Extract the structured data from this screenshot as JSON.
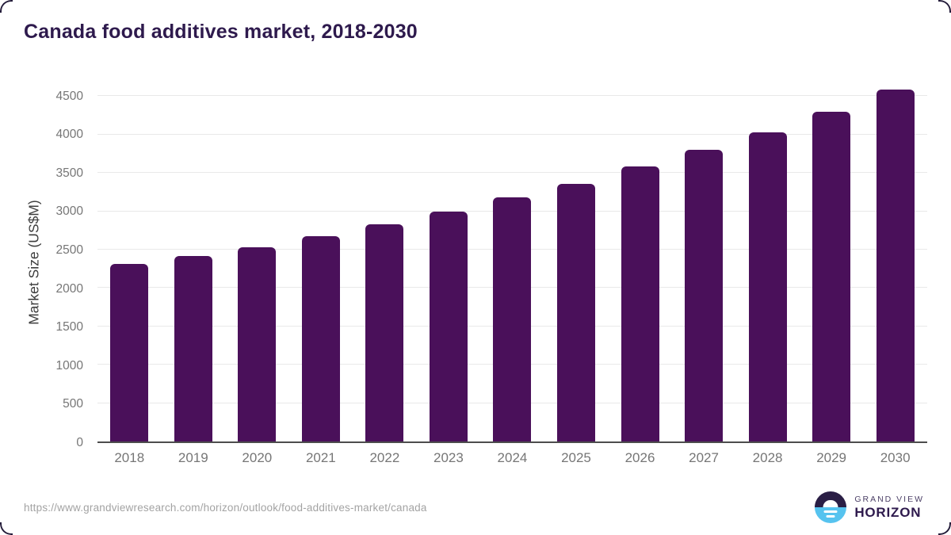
{
  "title": "Canada food additives market, 2018-2030",
  "footer": {
    "source_url": "https://www.grandviewresearch.com/horizon/outlook/food-additives-market/canada",
    "logo_line1": "GRAND VIEW",
    "logo_line2": "HORIZON"
  },
  "colors": {
    "bar": "#4a105a",
    "title": "#2e1a4d",
    "axis_line": "#4d4d4d",
    "gridline": "#e9e9e9",
    "tick_label": "#767676",
    "axis_title": "#3d3d3d",
    "url_text": "#a3a3a3",
    "logo_dark": "#2a1e45",
    "logo_blue": "#56c3ef"
  },
  "chart_data": {
    "type": "bar",
    "title": "Canada food additives market, 2018-2030",
    "categories": [
      "2018",
      "2019",
      "2020",
      "2021",
      "2022",
      "2023",
      "2024",
      "2025",
      "2026",
      "2027",
      "2028",
      "2029",
      "2030"
    ],
    "values": [
      2310,
      2420,
      2535,
      2680,
      2830,
      3000,
      3180,
      3360,
      3580,
      3800,
      4030,
      4300,
      4590
    ],
    "xlabel": "",
    "ylabel": "Market Size (US$M)",
    "ylim": [
      0,
      4680
    ],
    "yticks": [
      0,
      500,
      1000,
      1500,
      2000,
      2500,
      3000,
      3500,
      4000,
      4500
    ],
    "grid": true,
    "legend": false,
    "bar_color": "#4a105a",
    "units": "US$M"
  }
}
